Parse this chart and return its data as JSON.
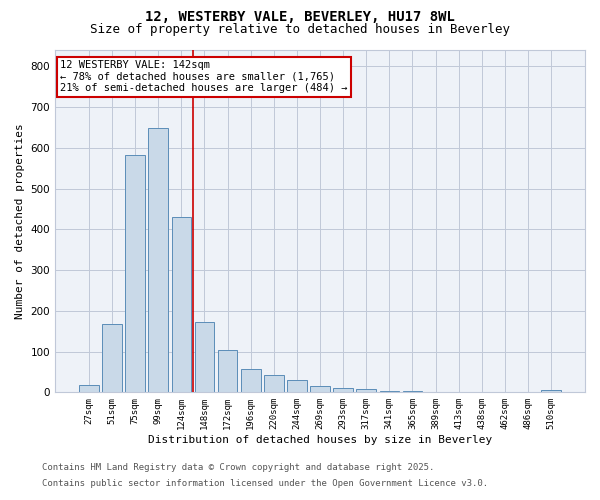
{
  "title_line1": "12, WESTERBY VALE, BEVERLEY, HU17 8WL",
  "title_line2": "Size of property relative to detached houses in Beverley",
  "xlabel": "Distribution of detached houses by size in Beverley",
  "ylabel": "Number of detached properties",
  "categories": [
    "27sqm",
    "51sqm",
    "75sqm",
    "99sqm",
    "124sqm",
    "148sqm",
    "172sqm",
    "196sqm",
    "220sqm",
    "244sqm",
    "269sqm",
    "293sqm",
    "317sqm",
    "341sqm",
    "365sqm",
    "389sqm",
    "413sqm",
    "438sqm",
    "462sqm",
    "486sqm",
    "510sqm"
  ],
  "values": [
    18,
    168,
    583,
    648,
    430,
    172,
    105,
    57,
    42,
    30,
    15,
    10,
    9,
    4,
    4,
    2,
    1,
    0,
    0,
    0,
    5
  ],
  "bar_color": "#c9d9e8",
  "bar_edge_color": "#5b8db8",
  "vline_x": 4.5,
  "vline_color": "#cc0000",
  "annotation_text": "12 WESTERBY VALE: 142sqm\n← 78% of detached houses are smaller (1,765)\n21% of semi-detached houses are larger (484) →",
  "annotation_box_color": "#cc0000",
  "ylim": [
    0,
    840
  ],
  "yticks": [
    0,
    100,
    200,
    300,
    400,
    500,
    600,
    700,
    800
  ],
  "grid_color": "#c0c8d8",
  "background_color": "#eef2f8",
  "footer_line1": "Contains HM Land Registry data © Crown copyright and database right 2025.",
  "footer_line2": "Contains public sector information licensed under the Open Government Licence v3.0.",
  "title_fontsize": 10,
  "subtitle_fontsize": 9,
  "annotation_fontsize": 7.5,
  "footer_fontsize": 6.5,
  "ylabel_fontsize": 8,
  "xlabel_fontsize": 8
}
